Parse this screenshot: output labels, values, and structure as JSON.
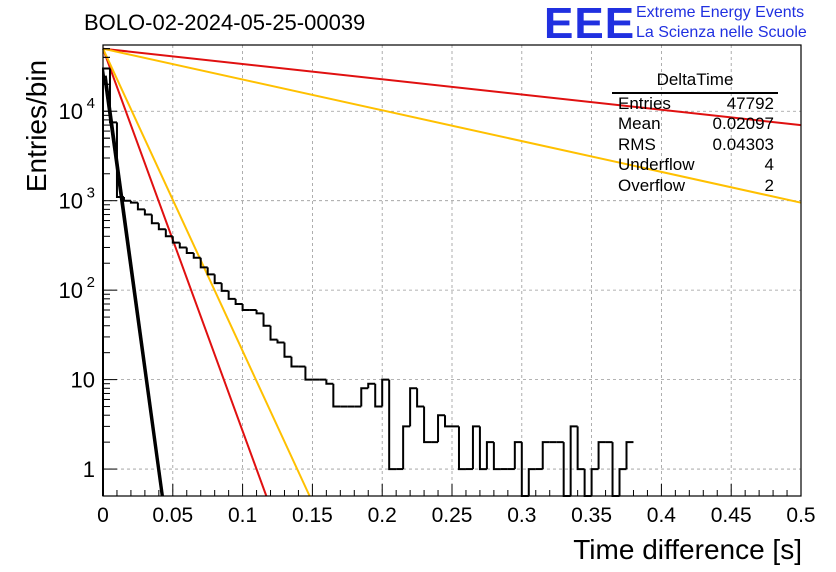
{
  "header": {
    "title": "BOLO-02-2024-05-25-00039",
    "logo_mark": "EEE",
    "logo_line1": "Extreme Energy Events",
    "logo_line2": "La Scienza nelle Scuole"
  },
  "stats": {
    "title": "DeltaTime",
    "rows": [
      {
        "label": "Entries",
        "value": "47792"
      },
      {
        "label": "Mean",
        "value": "0.02097"
      },
      {
        "label": "RMS",
        "value": "0.04303"
      },
      {
        "label": "Underflow",
        "value": "4"
      },
      {
        "label": "Overflow",
        "value": "2"
      }
    ]
  },
  "chart_data": {
    "type": "histogram",
    "title": "BOLO-02-2024-05-25-00039",
    "xlabel": "Time difference [s]",
    "ylabel": "Entries/bin",
    "xlim": [
      0,
      0.5
    ],
    "ylim": [
      0.5,
      55000
    ],
    "yscale": "log",
    "grid": true,
    "x_ticks": [
      "0",
      "0.05",
      "0.1",
      "0.15",
      "0.2",
      "0.25",
      "0.3",
      "0.35",
      "0.4",
      "0.45",
      "0.5"
    ],
    "y_ticks": [
      "1",
      "10",
      "10^2",
      "10^3",
      "10^4"
    ],
    "bin_width": 0.005,
    "histogram": [
      30000,
      7500,
      1100,
      1000,
      950,
      800,
      700,
      560,
      480,
      400,
      340,
      300,
      260,
      230,
      180,
      150,
      120,
      98,
      80,
      70,
      60,
      60,
      55,
      40,
      28,
      26,
      18,
      14,
      14,
      10,
      10,
      10,
      9,
      5,
      5,
      5,
      5,
      8,
      9,
      5,
      10,
      1,
      1,
      3,
      8,
      5,
      2,
      2,
      4,
      3,
      3,
      1,
      1,
      3,
      1,
      2,
      1,
      1,
      1,
      2,
      0.5,
      1,
      1,
      2,
      2,
      2,
      0.5,
      3,
      1,
      0.5,
      1,
      2,
      2,
      0.5,
      1,
      2
    ],
    "series": [
      {
        "color": "#000000",
        "lines": [
          {
            "x0": 0,
            "y0": 30000,
            "x1": 0.042,
            "y1": 0.5
          },
          {
            "x0": 0.002,
            "y0": 25000,
            "x1": 0.043,
            "y1": 0.5
          }
        ]
      },
      {
        "color": "#e01010",
        "lines": [
          {
            "x0": 0,
            "y0": 50000,
            "x1": 0.117,
            "y1": 0.5
          },
          {
            "x0": 0,
            "y0": 50000,
            "x1": 0.5,
            "y1": 7000
          }
        ]
      },
      {
        "color": "#ffc000",
        "lines": [
          {
            "x0": 0,
            "y0": 50000,
            "x1": 0.148,
            "y1": 0.5
          },
          {
            "x0": 0,
            "y0": 50000,
            "x1": 0.5,
            "y1": 950
          }
        ]
      }
    ]
  }
}
